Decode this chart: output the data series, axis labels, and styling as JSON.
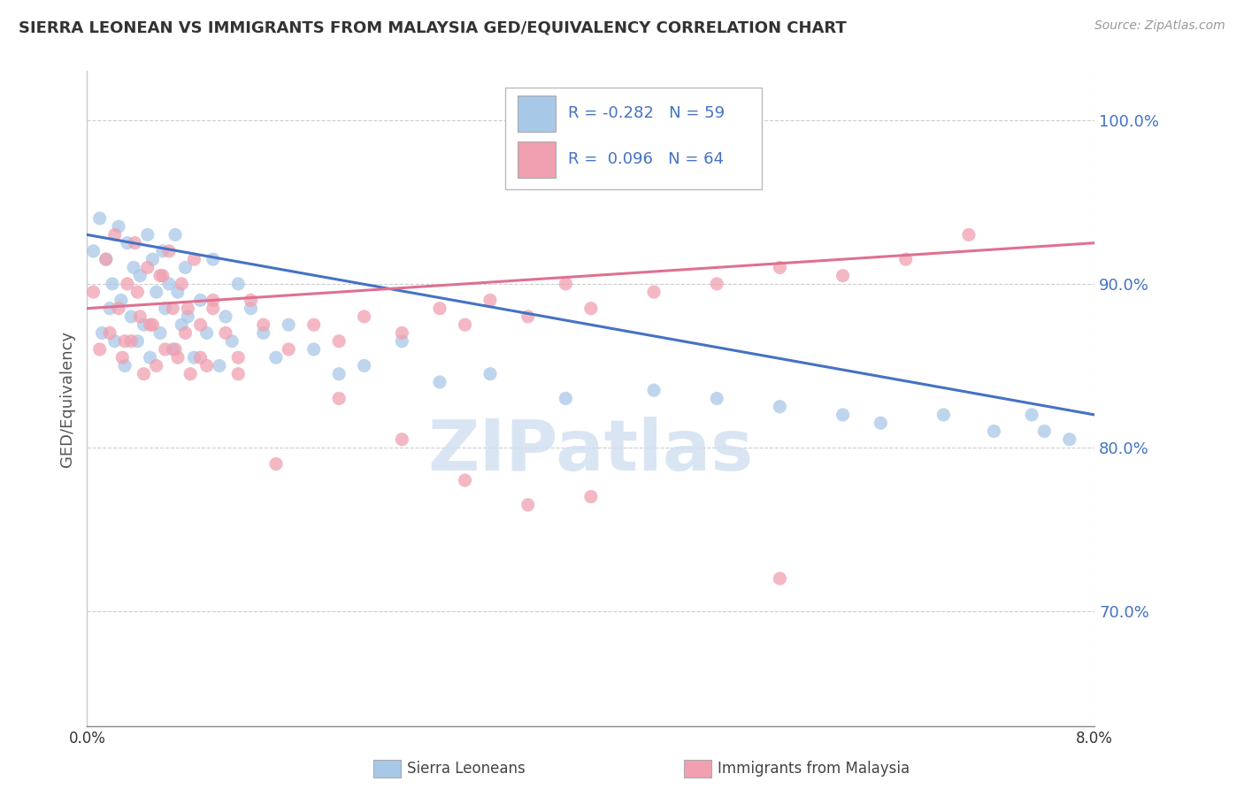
{
  "title": "SIERRA LEONEAN VS IMMIGRANTS FROM MALAYSIA GED/EQUIVALENCY CORRELATION CHART",
  "source_text": "Source: ZipAtlas.com",
  "ylabel": "GED/Equivalency",
  "legend_label_1": "Sierra Leoneans",
  "legend_label_2": "Immigrants from Malaysia",
  "R1": -0.282,
  "N1": 59,
  "R2": 0.096,
  "N2": 64,
  "color_blue": "#a8c8e8",
  "color_pink": "#f0a0b0",
  "color_blue_line": "#4472c4",
  "color_pink_line": "#e07090",
  "watermark_color": "#d0dff0",
  "watermark_text": "ZIPatlas",
  "xmin": 0.0,
  "xmax": 8.0,
  "ymin": 63.0,
  "ymax": 103.0,
  "ytick_vals": [
    70.0,
    80.0,
    90.0,
    100.0
  ],
  "ytick_labels": [
    "70.0%",
    "80.0%",
    "90.0%",
    "100.0%"
  ],
  "blue_x": [
    0.05,
    0.1,
    0.12,
    0.15,
    0.18,
    0.2,
    0.22,
    0.25,
    0.27,
    0.3,
    0.32,
    0.35,
    0.37,
    0.4,
    0.42,
    0.45,
    0.48,
    0.5,
    0.52,
    0.55,
    0.58,
    0.6,
    0.62,
    0.65,
    0.68,
    0.7,
    0.72,
    0.75,
    0.78,
    0.8,
    0.85,
    0.9,
    0.95,
    1.0,
    1.05,
    1.1,
    1.15,
    1.2,
    1.3,
    1.4,
    1.5,
    1.6,
    1.8,
    2.0,
    2.2,
    2.5,
    2.8,
    3.2,
    3.8,
    4.5,
    5.0,
    5.5,
    6.0,
    6.3,
    6.8,
    7.2,
    7.5,
    7.6,
    7.8
  ],
  "blue_y": [
    92.0,
    94.0,
    87.0,
    91.5,
    88.5,
    90.0,
    86.5,
    93.5,
    89.0,
    85.0,
    92.5,
    88.0,
    91.0,
    86.5,
    90.5,
    87.5,
    93.0,
    85.5,
    91.5,
    89.5,
    87.0,
    92.0,
    88.5,
    90.0,
    86.0,
    93.0,
    89.5,
    87.5,
    91.0,
    88.0,
    85.5,
    89.0,
    87.0,
    91.5,
    85.0,
    88.0,
    86.5,
    90.0,
    88.5,
    87.0,
    85.5,
    87.5,
    86.0,
    84.5,
    85.0,
    86.5,
    84.0,
    84.5,
    83.0,
    83.5,
    83.0,
    82.5,
    82.0,
    81.5,
    82.0,
    81.0,
    82.0,
    81.0,
    80.5
  ],
  "pink_x": [
    0.05,
    0.1,
    0.15,
    0.18,
    0.22,
    0.25,
    0.28,
    0.32,
    0.35,
    0.38,
    0.42,
    0.45,
    0.48,
    0.52,
    0.55,
    0.58,
    0.62,
    0.65,
    0.68,
    0.72,
    0.75,
    0.78,
    0.82,
    0.85,
    0.9,
    0.95,
    1.0,
    1.1,
    1.2,
    1.3,
    1.4,
    1.6,
    1.8,
    2.0,
    2.2,
    2.5,
    2.8,
    3.0,
    3.2,
    3.5,
    3.8,
    4.0,
    4.5,
    5.0,
    5.5,
    6.0,
    6.5,
    7.0,
    0.3,
    0.4,
    0.5,
    0.6,
    0.7,
    0.8,
    0.9,
    1.0,
    1.2,
    1.5,
    2.0,
    2.5,
    3.0,
    3.5,
    4.0,
    5.5
  ],
  "pink_y": [
    89.5,
    86.0,
    91.5,
    87.0,
    93.0,
    88.5,
    85.5,
    90.0,
    86.5,
    92.5,
    88.0,
    84.5,
    91.0,
    87.5,
    85.0,
    90.5,
    86.0,
    92.0,
    88.5,
    85.5,
    90.0,
    87.0,
    84.5,
    91.5,
    87.5,
    85.0,
    88.5,
    87.0,
    85.5,
    89.0,
    87.5,
    86.0,
    87.5,
    86.5,
    88.0,
    87.0,
    88.5,
    87.5,
    89.0,
    88.0,
    90.0,
    88.5,
    89.5,
    90.0,
    91.0,
    90.5,
    91.5,
    93.0,
    86.5,
    89.5,
    87.5,
    90.5,
    86.0,
    88.5,
    85.5,
    89.0,
    84.5,
    79.0,
    83.0,
    80.5,
    78.0,
    76.5,
    77.0,
    72.0
  ]
}
